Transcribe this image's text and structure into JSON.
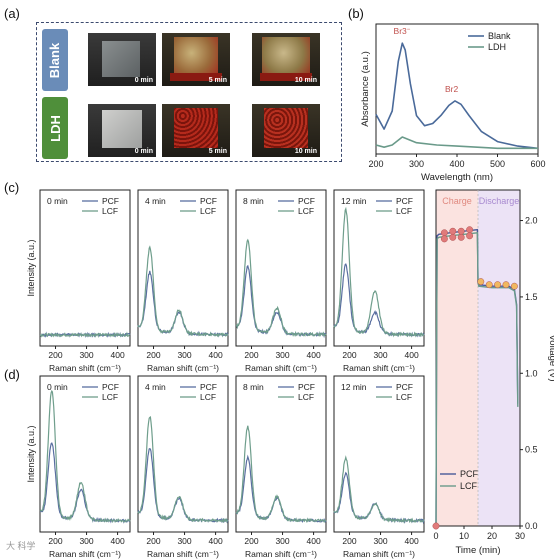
{
  "panel_labels": {
    "a": "(a)",
    "b": "(b)",
    "c": "(c)",
    "d": "(d)"
  },
  "photos": {
    "rows": [
      {
        "label": "Blank",
        "color": "#6a8cb8",
        "times": [
          "0 min",
          "5 min",
          "10 min"
        ]
      },
      {
        "label": "LDH",
        "color": "#4f8f3a",
        "times": [
          "0 min",
          "5 min",
          "10 min"
        ]
      }
    ]
  },
  "watermark": "大 科学",
  "chart_data": [
    {
      "id": "b",
      "type": "line",
      "xlabel": "Wavelength (nm)",
      "ylabel": "Absorbance (a.u.)",
      "xlim": [
        200,
        600
      ],
      "xticks": [
        200,
        300,
        400,
        500,
        600
      ],
      "legend_position": "top-right",
      "series": [
        {
          "name": "Blank",
          "color": "#4a6a9a",
          "x": [
            200,
            220,
            240,
            255,
            265,
            272,
            285,
            300,
            320,
            340,
            360,
            380,
            395,
            410,
            430,
            460,
            500,
            550,
            600
          ],
          "y": [
            0.35,
            0.22,
            0.38,
            0.82,
            0.98,
            0.92,
            0.62,
            0.34,
            0.25,
            0.27,
            0.34,
            0.43,
            0.47,
            0.44,
            0.34,
            0.2,
            0.11,
            0.07,
            0.05
          ]
        },
        {
          "name": "LDH",
          "color": "#6a9a8a",
          "x": [
            200,
            220,
            240,
            265,
            300,
            350,
            400,
            450,
            500,
            550,
            600
          ],
          "y": [
            0.08,
            0.06,
            0.08,
            0.15,
            0.1,
            0.08,
            0.07,
            0.06,
            0.05,
            0.05,
            0.05
          ]
        }
      ],
      "annotations": [
        {
          "text": "Br3",
          "sub": "−",
          "x": 268,
          "y": 1.06
        },
        {
          "text": "Br2",
          "sub": "",
          "x": 395,
          "y": 0.55
        }
      ]
    },
    {
      "id": "c-raman",
      "type": "line",
      "group": "c",
      "xlabel": "Raman shift (cm⁻¹)",
      "ylabel": "Intensity (a.u.)",
      "xlim": [
        150,
        440
      ],
      "xticks": [
        200,
        300,
        400
      ],
      "panels": [
        {
          "time": "0 min",
          "pcf": {
            "peak1": 0.0,
            "peak2": 0.0
          },
          "lcf": {
            "peak1": 0.0,
            "peak2": 0.0
          }
        },
        {
          "time": "4 min",
          "pcf": {
            "peak1": 0.55,
            "peak2": 0.2
          },
          "lcf": {
            "peak1": 0.78,
            "peak2": 0.22
          }
        },
        {
          "time": "8 min",
          "pcf": {
            "peak1": 0.6,
            "peak2": 0.2
          },
          "lcf": {
            "peak1": 0.85,
            "peak2": 0.24
          }
        },
        {
          "time": "12 min",
          "pcf": {
            "peak1": 0.62,
            "peak2": 0.2
          },
          "lcf": {
            "peak1": 1.15,
            "peak2": 0.4
          }
        }
      ],
      "series_names": [
        "PCF",
        "LCF"
      ]
    },
    {
      "id": "d-raman",
      "type": "line",
      "group": "d",
      "xlabel": "Raman shift (cm⁻¹)",
      "ylabel": "Intensity (a.u.)",
      "xlim": [
        150,
        440
      ],
      "xticks": [
        200,
        300,
        400
      ],
      "panels": [
        {
          "time": "0 min",
          "pcf": {
            "peak1": 0.7,
            "peak2": 0.28
          },
          "lcf": {
            "peak1": 1.2,
            "peak2": 0.35
          }
        },
        {
          "time": "4 min",
          "pcf": {
            "peak1": 0.65,
            "peak2": 0.2
          },
          "lcf": {
            "peak1": 0.95,
            "peak2": 0.22
          }
        },
        {
          "time": "8 min",
          "pcf": {
            "peak1": 0.55,
            "peak2": 0.2
          },
          "lcf": {
            "peak1": 0.85,
            "peak2": 0.22
          }
        },
        {
          "time": "12 min",
          "pcf": {
            "peak1": 0.4,
            "peak2": 0.15
          },
          "lcf": {
            "peak1": 0.55,
            "peak2": 0.15
          }
        }
      ],
      "series_names": [
        "PCF",
        "LCF"
      ]
    },
    {
      "id": "voltage",
      "type": "line",
      "xlabel": "Time (min)",
      "ylabel": "Voltage (V)",
      "xlim": [
        0,
        30
      ],
      "ylim": [
        0,
        2.2
      ],
      "xticks": [
        0,
        10,
        20,
        30
      ],
      "yticks": [
        0.0,
        0.5,
        1.0,
        1.5,
        2.0
      ],
      "regions": [
        {
          "label": "Charge",
          "from": 0,
          "to": 15,
          "color": "#fbe3e0"
        },
        {
          "label": "Discharge",
          "from": 15,
          "to": 30,
          "color": "#ece3f6"
        }
      ],
      "series": [
        {
          "name": "PCF",
          "color": "#4a5a9a",
          "x": [
            0,
            0.2,
            0.4,
            1,
            5,
            10,
            14.8,
            15,
            15.3,
            20,
            26,
            27,
            28,
            28.8,
            29.2
          ],
          "y": [
            0,
            1.2,
            1.9,
            1.91,
            1.92,
            1.93,
            1.94,
            1.6,
            1.58,
            1.57,
            1.57,
            1.56,
            1.55,
            1.45,
            0.8
          ]
        },
        {
          "name": "LCF",
          "color": "#6a9a8a",
          "x": [
            0,
            0.2,
            0.4,
            1,
            5,
            10,
            14.8,
            15,
            15.3,
            20,
            26,
            27,
            28,
            28.8,
            29.2
          ],
          "y": [
            0,
            1.18,
            1.88,
            1.89,
            1.9,
            1.91,
            1.92,
            1.59,
            1.57,
            1.56,
            1.56,
            1.55,
            1.54,
            1.44,
            0.78
          ]
        }
      ],
      "markers": [
        {
          "x": 0,
          "y": 0.0,
          "color": "#e07a7a"
        },
        {
          "x": 3,
          "y": 1.92,
          "color": "#e07a7a"
        },
        {
          "x": 6,
          "y": 1.93,
          "color": "#e07a7a"
        },
        {
          "x": 9,
          "y": 1.93,
          "color": "#e07a7a"
        },
        {
          "x": 12,
          "y": 1.94,
          "color": "#e07a7a"
        },
        {
          "x": 3,
          "y": 1.88,
          "color": "#e07a7a"
        },
        {
          "x": 6,
          "y": 1.89,
          "color": "#e07a7a"
        },
        {
          "x": 9,
          "y": 1.89,
          "color": "#e07a7a"
        },
        {
          "x": 12,
          "y": 1.9,
          "color": "#e07a7a"
        },
        {
          "x": 16,
          "y": 1.6,
          "color": "#f0b860"
        },
        {
          "x": 19,
          "y": 1.58,
          "color": "#f0b860"
        },
        {
          "x": 22,
          "y": 1.58,
          "color": "#f0b860"
        },
        {
          "x": 25,
          "y": 1.58,
          "color": "#f0b860"
        },
        {
          "x": 28,
          "y": 1.57,
          "color": "#f0b860"
        }
      ]
    }
  ]
}
